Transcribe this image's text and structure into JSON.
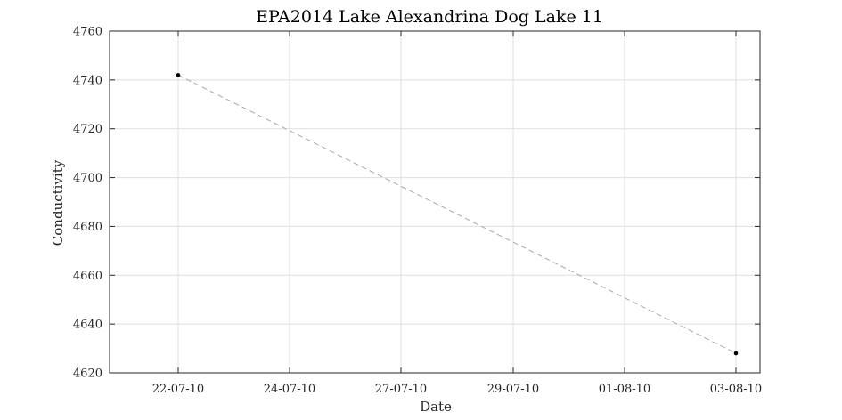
{
  "chart_data": {
    "type": "line",
    "title": "EPA2014 Lake Alexandrina Dog Lake 11",
    "xlabel": "Date",
    "ylabel": "Conductivity",
    "x_ticks": [
      "22-07-10",
      "24-07-10",
      "27-07-10",
      "29-07-10",
      "01-08-10",
      "03-08-10"
    ],
    "y_ticks": [
      "4620",
      "4640",
      "4660",
      "4680",
      "4700",
      "4720",
      "4740",
      "4760"
    ],
    "ylim": [
      4620,
      4760
    ],
    "grid": true,
    "series": [
      {
        "x": [
          "22-07-10",
          "03-08-10"
        ],
        "y": [
          4742,
          4628
        ],
        "line_style": "dashed",
        "line_color": "#a6a6a6",
        "marker_color": "#000000"
      }
    ]
  }
}
